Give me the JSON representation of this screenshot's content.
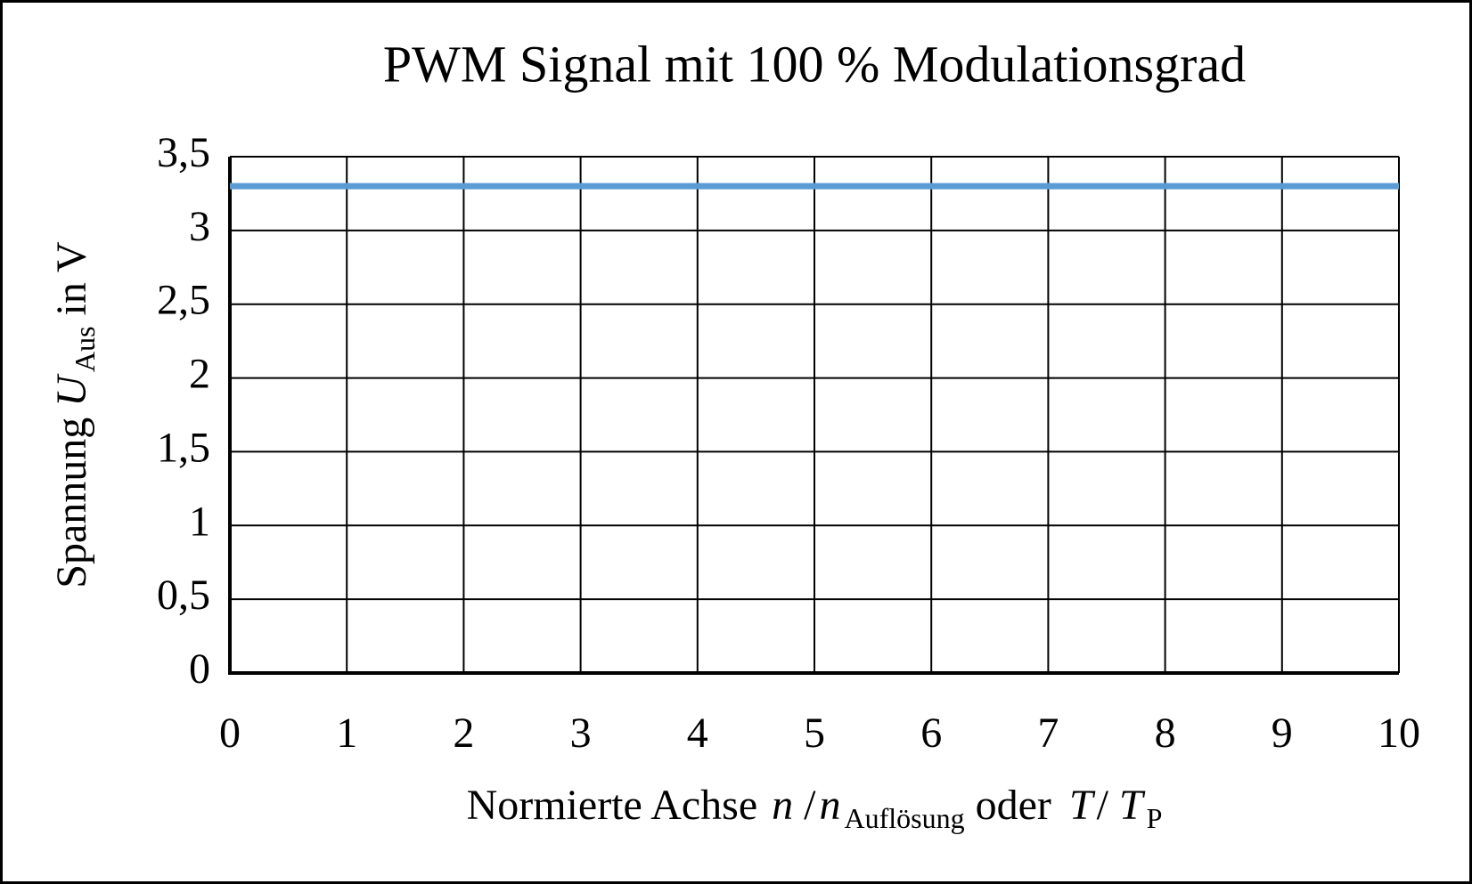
{
  "chart_data": {
    "type": "line",
    "title": "PWM Signal mit 100 % Modulationsgrad",
    "xlabel_parts": [
      "Normierte Achse",
      "n",
      "/",
      "n",
      "Auflösung",
      "oder",
      "T",
      "/",
      "T",
      "P"
    ],
    "ylabel_parts": [
      "Spannung",
      "U",
      "Aus",
      "in V"
    ],
    "x": [
      0,
      10
    ],
    "series": [
      {
        "color": "#5b9bd5",
        "values": [
          3.3,
          3.3
        ]
      }
    ],
    "xlim": [
      0,
      10
    ],
    "xticks": [
      0,
      1,
      2,
      3,
      4,
      5,
      6,
      7,
      8,
      9,
      10
    ],
    "ylim": [
      0,
      3.5
    ],
    "yticks": [
      0,
      {
        "value": 0.5,
        "label": "0,5"
      },
      1,
      {
        "value": 1.5,
        "label": "1,5"
      },
      2,
      {
        "value": 2.5,
        "label": "2,5"
      },
      3,
      {
        "value": 3.5,
        "label": "3,5"
      }
    ],
    "grid": true
  }
}
